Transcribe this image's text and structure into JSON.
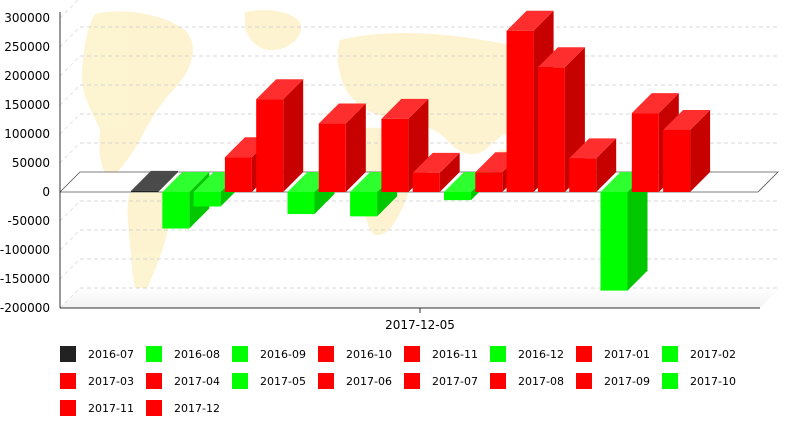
{
  "chart_data": {
    "type": "bar",
    "title": "",
    "xlabel": "",
    "ylabel": "",
    "categories": [
      "2017-12-05"
    ],
    "ylim": [
      -200000,
      300000
    ],
    "yticks": [
      300000,
      250000,
      200000,
      150000,
      100000,
      50000,
      0,
      -50000,
      -100000,
      -150000,
      -200000
    ],
    "grid": true,
    "legend_position": "bottom",
    "series": [
      {
        "name": "2016-07",
        "value": 2000,
        "color": "#222222"
      },
      {
        "name": "2016-08",
        "value": -63000,
        "color": "#00ff00"
      },
      {
        "name": "2016-09",
        "value": -25000,
        "color": "#00ff00"
      },
      {
        "name": "2016-10",
        "value": 60000,
        "color": "#ff0000"
      },
      {
        "name": "2016-11",
        "value": 160000,
        "color": "#ff0000"
      },
      {
        "name": "2016-12",
        "value": -38000,
        "color": "#00ff00"
      },
      {
        "name": "2017-01",
        "value": 118000,
        "color": "#ff0000"
      },
      {
        "name": "2017-02",
        "value": -42000,
        "color": "#00ff00"
      },
      {
        "name": "2017-03",
        "value": 126000,
        "color": "#ff0000"
      },
      {
        "name": "2017-04",
        "value": 33000,
        "color": "#ff0000"
      },
      {
        "name": "2017-05",
        "value": -14000,
        "color": "#00ff00"
      },
      {
        "name": "2017-06",
        "value": 34000,
        "color": "#ff0000"
      },
      {
        "name": "2017-07",
        "value": 278000,
        "color": "#ff0000"
      },
      {
        "name": "2017-08",
        "value": 215000,
        "color": "#ff0000"
      },
      {
        "name": "2017-09",
        "value": 58000,
        "color": "#ff0000"
      },
      {
        "name": "2017-10",
        "value": -170000,
        "color": "#00ff00"
      },
      {
        "name": "2017-11",
        "value": 136000,
        "color": "#ff0000"
      },
      {
        "name": "2017-12",
        "value": 107000,
        "color": "#ff0000"
      }
    ]
  }
}
